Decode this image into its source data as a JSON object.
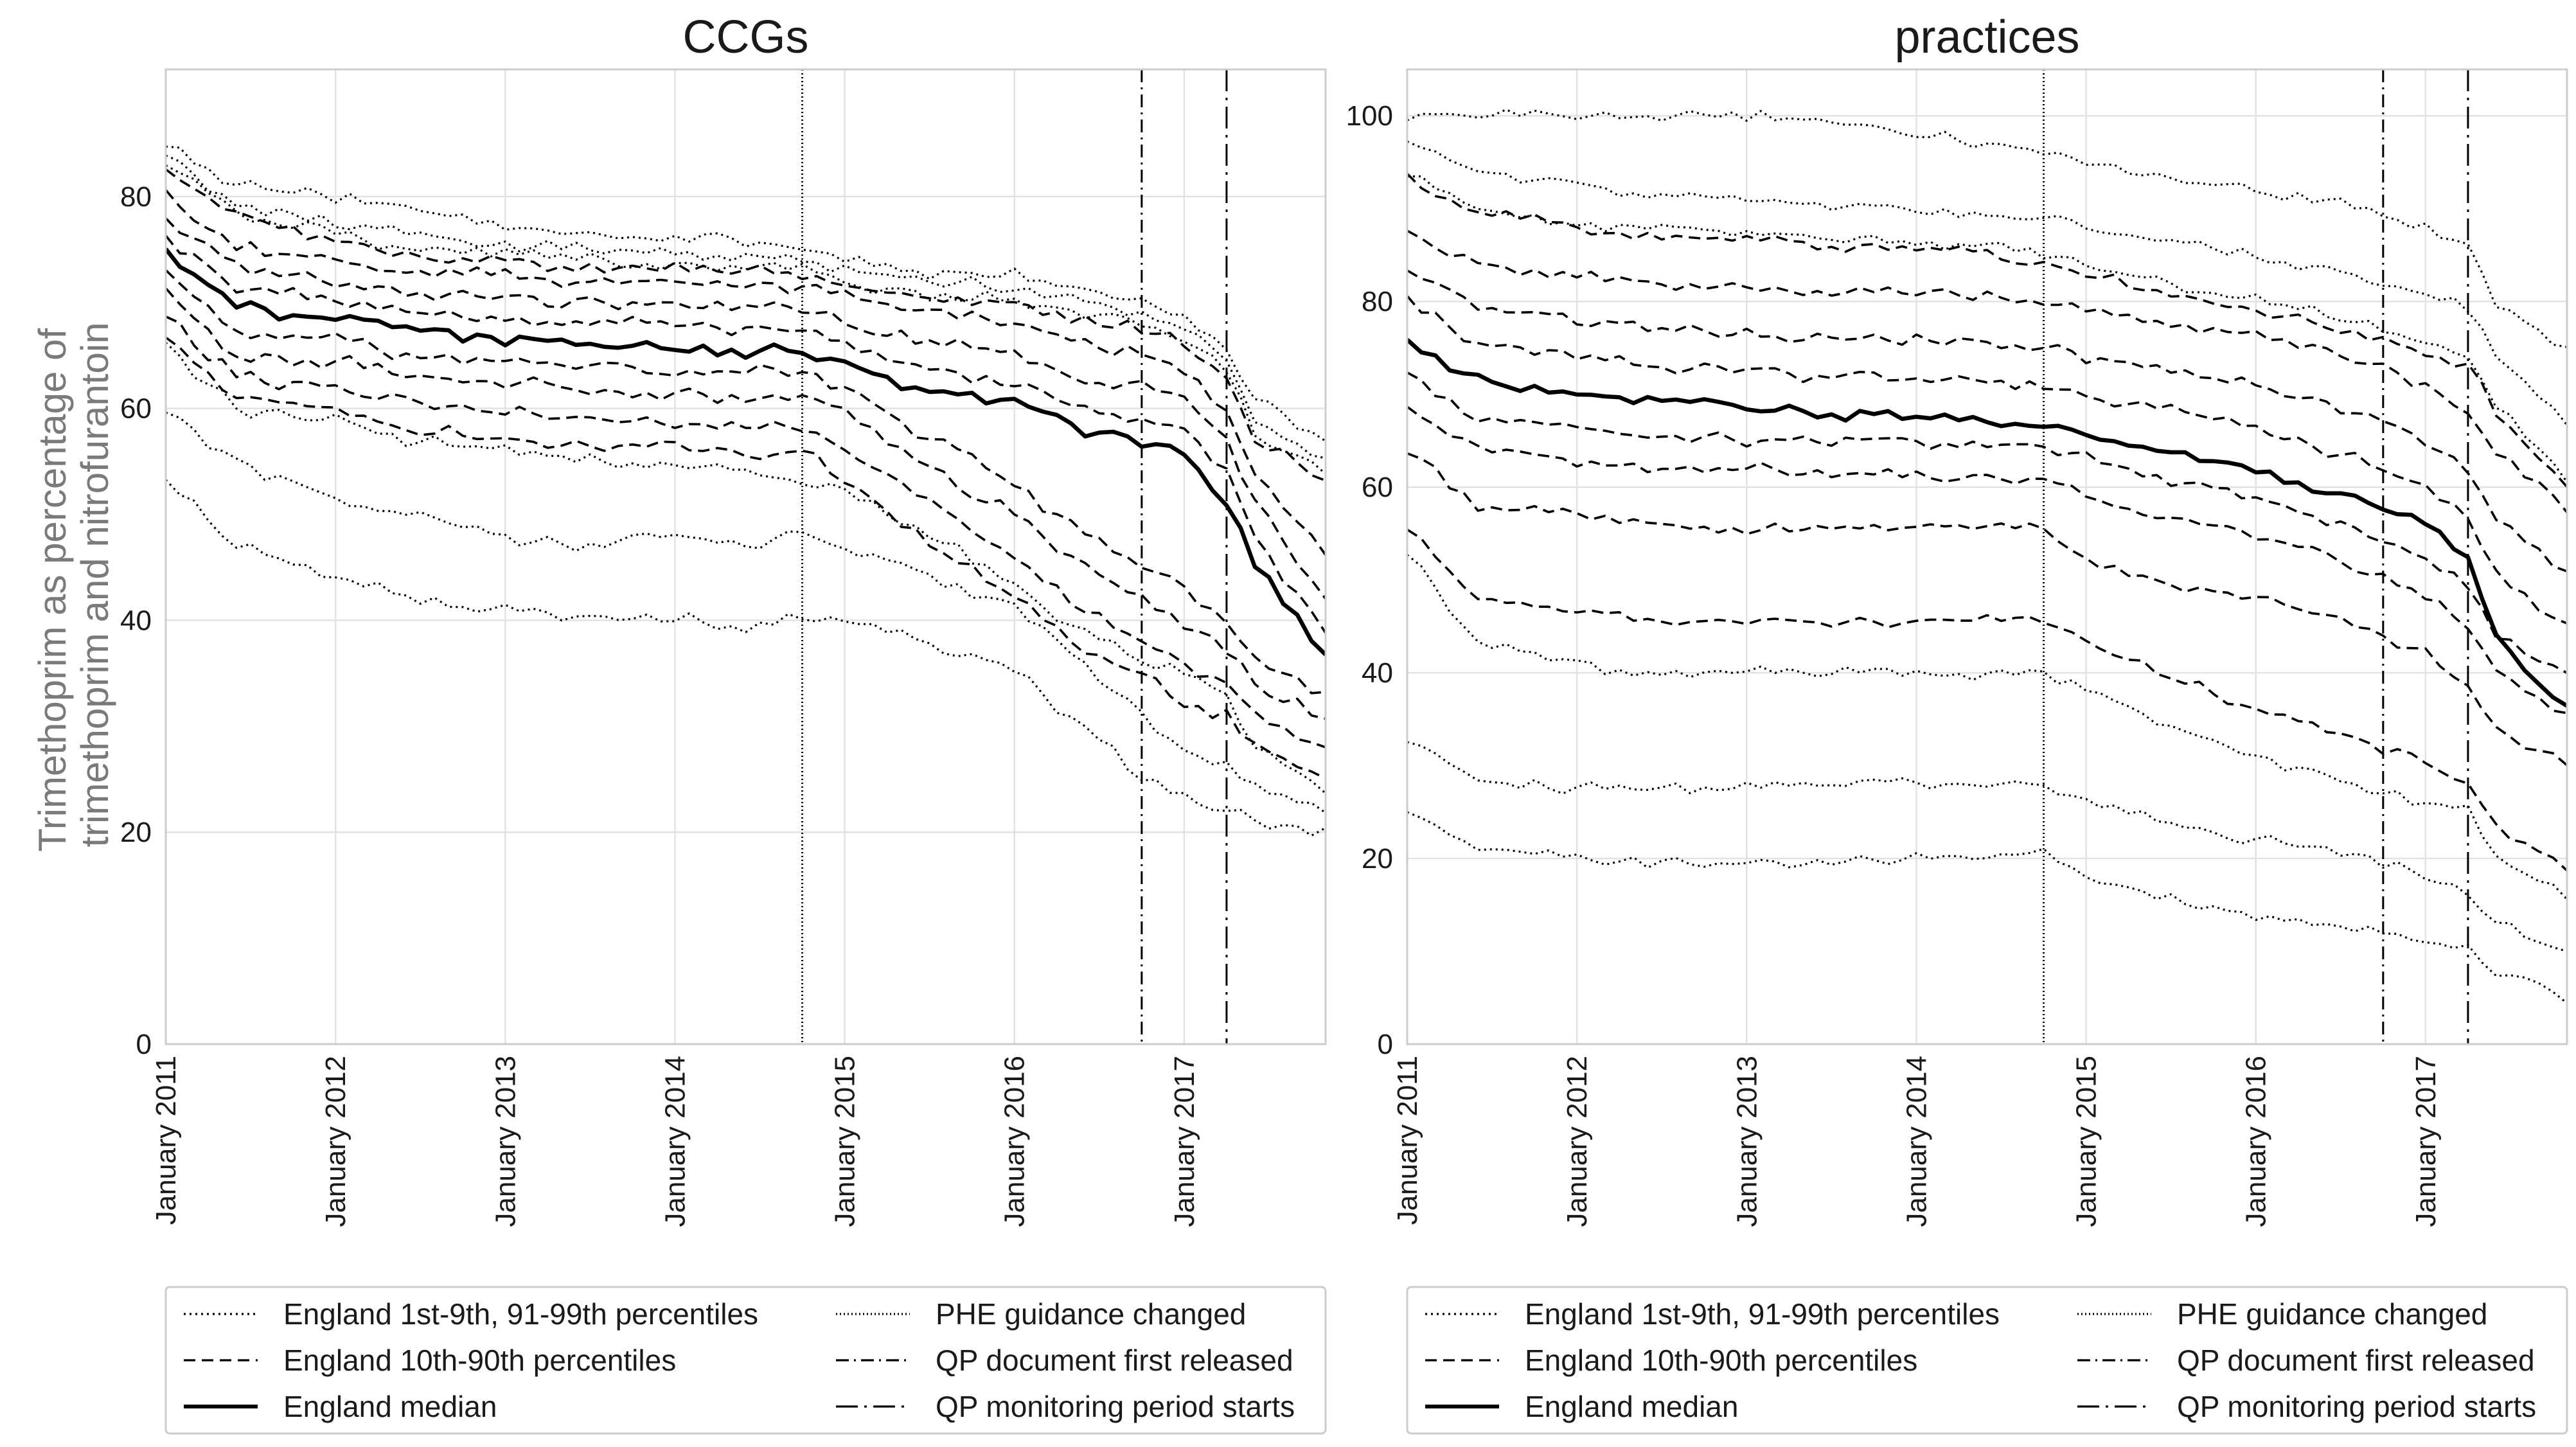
{
  "figure": {
    "y_axis_label": [
      "Trimethoprim as percentage of",
      "trimethoprim and nitrofurantoin"
    ]
  },
  "legend": {
    "items": [
      {
        "label": "England 1st-9th, 91-99th percentiles",
        "style": "dotted"
      },
      {
        "label": "England 10th-90th percentiles",
        "style": "dashed"
      },
      {
        "label": "England median",
        "style": "solid"
      },
      {
        "label": "PHE guidance changed",
        "style": "densely-dotted"
      },
      {
        "label": "QP document first released",
        "style": "dashdot"
      },
      {
        "label": "QP monitoring period starts",
        "style": "long-dashdot"
      }
    ]
  },
  "chart_data": [
    {
      "type": "line",
      "title": "CCGs",
      "xlabel": "",
      "ylabel": "Trimethoprim as percentage of trimethoprim and nitrofurantoin",
      "x_range": [
        "2011-01",
        "2017-11"
      ],
      "ylim": [
        0,
        92
      ],
      "yticks": [
        0,
        20,
        40,
        60,
        80
      ],
      "xticks": [
        "January 2011",
        "January 2012",
        "January 2013",
        "January 2014",
        "January 2015",
        "January 2016",
        "January 2017"
      ],
      "grid": true,
      "event_lines": [
        {
          "name": "PHE guidance changed",
          "date": "2014-10"
        },
        {
          "name": "QP document first released",
          "date": "2016-10"
        },
        {
          "name": "QP monitoring period starts",
          "date": "2017-04"
        }
      ],
      "series_kf": {
        "x": [
          "2011-01",
          "2011-06",
          "2012-01",
          "2012-06",
          "2013-01",
          "2013-06",
          "2014-01",
          "2014-06",
          "2014-10",
          "2015-01",
          "2015-06",
          "2016-01",
          "2016-06",
          "2016-10",
          "2017-01",
          "2017-04",
          "2017-06",
          "2017-11"
        ],
        "percentiles": [
          {
            "p": 1,
            "style": "dotted",
            "values": [
              53,
              47,
              44,
              42,
              41,
              40.5,
              40,
              39.5,
              40.5,
              40,
              38,
              35,
              30,
              25,
              23,
              22,
              21,
              20
            ]
          },
          {
            "p": 5,
            "style": "dotted",
            "values": [
              60,
              55,
              51,
              50,
              48,
              47,
              48,
              47,
              48,
              47,
              45,
              41,
              36,
              31,
              28,
              26,
              24,
              22
            ]
          },
          {
            "p": 9,
            "style": "dotted",
            "values": [
              66,
              60,
              59,
              57,
              56,
              55,
              55,
              54,
              53,
              52,
              49,
              43,
              39,
              36,
              35,
              33,
              28,
              24
            ]
          },
          {
            "p": 10,
            "style": "dashed",
            "values": [
              66.5,
              61,
              60,
              58,
              57,
              56.5,
              56.5,
              55.5,
              56,
              53,
              48,
              42,
              37,
              35,
              32,
              31,
              28,
              25
            ]
          },
          {
            "p": 20,
            "style": "dashed",
            "values": [
              68.5,
              63,
              62,
              60.5,
              59.5,
              59,
              58.5,
              58,
              58.5,
              56,
              52,
              46,
              41,
              38,
              36,
              34,
              31,
              28
            ]
          },
          {
            "p": 30,
            "style": "dashed",
            "values": [
              71,
              65,
              64.5,
              63,
              62.5,
              62,
              61.5,
              61,
              61.5,
              59.5,
              55,
              50,
              45,
              42,
              40,
              37,
              34,
              31
            ]
          },
          {
            "p": 40,
            "style": "dashed",
            "values": [
              73,
              67,
              66.5,
              65,
              64.5,
              64,
              63.5,
              63.5,
              63.5,
              62,
              58,
              53,
              48,
              45,
              43,
              40,
              36,
              33
            ]
          },
          {
            "p": 50,
            "style": "solid",
            "values": [
              74.5,
              69.5,
              68.5,
              67.5,
              66.5,
              66,
              66,
              65.5,
              65.5,
              64,
              62,
              60.5,
              58,
              57,
              55.5,
              51,
              45,
              36.5
            ]
          },
          {
            "p": 60,
            "style": "dashed",
            "values": [
              76,
              71.5,
              70,
              69,
              68.5,
              68,
              68,
              67.5,
              67.5,
              66,
              64,
              62.5,
              60,
              59,
              58,
              54,
              48,
              39
            ]
          },
          {
            "p": 70,
            "style": "dashed",
            "values": [
              78,
              73.5,
              72,
              71,
              70.5,
              70,
              70,
              69.5,
              69.5,
              68,
              66.5,
              65,
              63,
              62,
              61,
              57,
              51,
              42
            ]
          },
          {
            "p": 80,
            "style": "dashed",
            "values": [
              80,
              75.5,
              74,
              73,
              72.5,
              72,
              72,
              71.5,
              71.5,
              70.5,
              69,
              68,
              66,
              65,
              64,
              60,
              54,
              46
            ]
          },
          {
            "p": 90,
            "style": "dashed",
            "values": [
              82.5,
              78,
              76,
              74.5,
              74,
              73.5,
              73,
              73,
              72.5,
              71.5,
              70.5,
              70,
              68.5,
              67.5,
              66,
              63,
              57,
              53.5
            ]
          },
          {
            "p": 91,
            "style": "dotted",
            "values": [
              83,
              78.5,
              76.5,
              75,
              74.5,
              74,
              73.5,
              73.5,
              73,
              72,
              71,
              70.5,
              69,
              68,
              66.5,
              63.5,
              57.5,
              54
            ]
          },
          {
            "p": 95,
            "style": "dotted",
            "values": [
              83.5,
              79.5,
              77.5,
              76.5,
              75.5,
              75,
              74.5,
              74.5,
              74,
              73,
              72,
              71.5,
              70,
              69,
              67.5,
              64.5,
              59,
              55
            ]
          },
          {
            "p": 99,
            "style": "dotted",
            "values": [
              85,
              81,
              80,
              79,
              77,
              76.5,
              76,
              76,
              75,
              74,
              73,
              72.5,
              71,
              70,
              69,
              66,
              61,
              57
            ]
          }
        ]
      }
    },
    {
      "type": "line",
      "title": "practices",
      "xlabel": "",
      "ylabel": "",
      "x_range": [
        "2011-01",
        "2017-11"
      ],
      "ylim": [
        0,
        105
      ],
      "yticks": [
        0,
        20,
        40,
        60,
        80,
        100
      ],
      "xticks": [
        "January 2011",
        "January 2012",
        "January 2013",
        "January 2014",
        "January 2015",
        "January 2016",
        "January 2017"
      ],
      "grid": true,
      "event_lines": [
        {
          "name": "PHE guidance changed",
          "date": "2014-10"
        },
        {
          "name": "QP document first released",
          "date": "2016-10"
        },
        {
          "name": "QP monitoring period starts",
          "date": "2017-04"
        }
      ],
      "series_kf": {
        "x": [
          "2011-01",
          "2011-06",
          "2012-01",
          "2012-06",
          "2013-01",
          "2013-06",
          "2014-01",
          "2014-06",
          "2014-10",
          "2015-01",
          "2015-06",
          "2016-01",
          "2016-06",
          "2016-10",
          "2017-01",
          "2017-04",
          "2017-06",
          "2017-11"
        ],
        "percentiles": [
          {
            "p": 1,
            "style": "dotted",
            "values": [
              25,
              21,
              20,
              19.5,
              19.5,
              19.5,
              20,
              20,
              20.5,
              18,
              16,
              14,
              13,
              12,
              11,
              10,
              8,
              5
            ]
          },
          {
            "p": 5,
            "style": "dotted",
            "values": [
              33,
              28.5,
              27.5,
              27.5,
              27.5,
              28,
              28,
              28,
              28,
              26,
              24,
              22,
              21,
              19.5,
              18,
              16,
              13,
              10
            ]
          },
          {
            "p": 9,
            "style": "dotted",
            "values": [
              53,
              43,
              41,
              40,
              40,
              40,
              40,
              40,
              40,
              38,
              35,
              31,
              29,
              27,
              26,
              25,
              20,
              16
            ]
          },
          {
            "p": 10,
            "style": "dashed",
            "values": [
              55.5,
              48,
              46.5,
              45.5,
              45.5,
              45.5,
              45.5,
              45.5,
              46,
              43,
              40,
              36,
              34,
              32,
              30.5,
              28,
              23.5,
              19
            ]
          },
          {
            "p": 20,
            "style": "dashed",
            "values": [
              64,
              58,
              57,
              56,
              55.5,
              55.5,
              55.5,
              55.5,
              55.5,
              52,
              50,
              48,
              46,
              44,
              42,
              39,
              34,
              30
            ]
          },
          {
            "p": 30,
            "style": "dashed",
            "values": [
              68.5,
              64,
              63,
              62,
              62,
              61.5,
              61,
              61,
              61,
              59,
              57,
              55,
              52.5,
              50,
              48,
              45,
              40,
              35
            ]
          },
          {
            "p": 40,
            "style": "dashed",
            "values": [
              72.5,
              67.5,
              66.5,
              65.5,
              65,
              65,
              65,
              64.5,
              64.5,
              63,
              61,
              59,
              56.5,
              54,
              52,
              49,
              44,
              40
            ]
          },
          {
            "p": 50,
            "style": "solid",
            "values": [
              76,
              71.5,
              70,
              69.5,
              68.5,
              68,
              67.5,
              67,
              67,
              65.5,
              64,
              62,
              59.5,
              58,
              56,
              52,
              44,
              36
            ]
          },
          {
            "p": 60,
            "style": "dashed",
            "values": [
              80,
              75.5,
              74,
              73,
              72.5,
              72,
              72,
              71.5,
              71,
              70,
              68.5,
              66.5,
              64,
              62,
              60,
              56.5,
              51,
              45
            ]
          },
          {
            "p": 70,
            "style": "dashed",
            "values": [
              83.5,
              79.5,
              78,
              77,
              76.5,
              76,
              76,
              75.5,
              75,
              74,
              72.5,
              71,
              69,
              67,
              65,
              62,
              57,
              51
            ]
          },
          {
            "p": 80,
            "style": "dashed",
            "values": [
              87.5,
              84,
              83,
              82,
              81.5,
              81,
              81,
              80.5,
              80,
              79,
              78,
              76.5,
              74.5,
              73,
              71,
              68,
              63.5,
              58
            ]
          },
          {
            "p": 90,
            "style": "dashed",
            "values": [
              93,
              89.5,
              88,
              87,
              86.5,
              86,
              85.5,
              85,
              84,
              83,
              81,
              79,
              77.5,
              76,
              74.5,
              73,
              68,
              60
            ]
          },
          {
            "p": 91,
            "style": "dotted",
            "values": [
              93.5,
              90,
              88.5,
              88,
              87.5,
              87,
              86.5,
              86,
              85,
              84,
              82,
              80,
              78.5,
              77,
              75.5,
              74,
              69,
              61
            ]
          },
          {
            "p": 95,
            "style": "dotted",
            "values": [
              97,
              94,
              92.5,
              91.5,
              91,
              90.5,
              90,
              89.5,
              89,
              88,
              86.5,
              85,
              83.5,
              82,
              81,
              79,
              74,
              67
            ]
          },
          {
            "p": 99,
            "style": "dotted",
            "values": [
              100,
              100,
              100,
              100,
              100,
              99.5,
              98,
              97,
              96,
              95,
              93.5,
              92,
              91,
              89,
              88,
              86,
              80,
              75
            ]
          }
        ]
      }
    }
  ]
}
